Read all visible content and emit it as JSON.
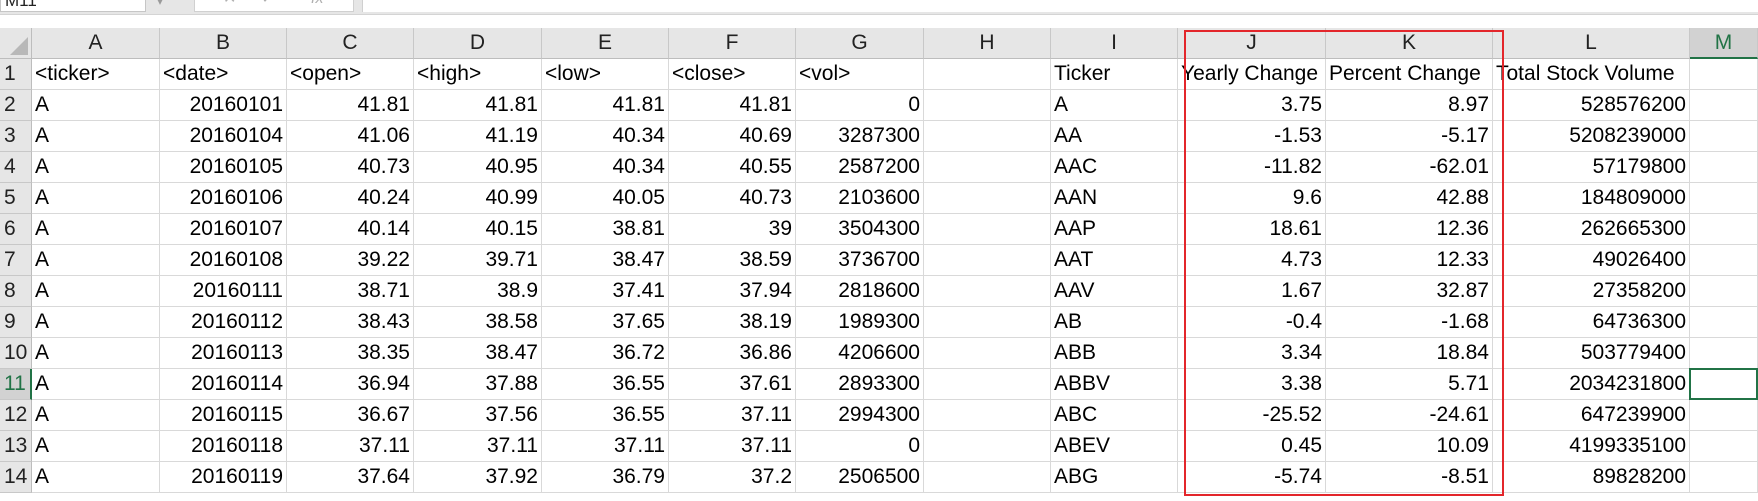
{
  "name_box": "M11",
  "formula_bar": {
    "fx_label": "fx",
    "cancel_symbol": "✕",
    "enter_symbol": "✓",
    "value": ""
  },
  "columns": [
    "",
    "A",
    "B",
    "C",
    "D",
    "E",
    "F",
    "G",
    "H",
    "I",
    "J",
    "K",
    "L",
    "M"
  ],
  "selected_column": "M",
  "selected_row": "11",
  "rows": [
    {
      "n": "1",
      "cells": [
        "<ticker>",
        "<date>",
        "<open>",
        "<high>",
        "<low>",
        "<close>",
        "<vol>",
        "",
        "Ticker",
        "Yearly Change",
        "Percent Change",
        "Total Stock Volume",
        ""
      ]
    },
    {
      "n": "2",
      "cells": [
        "A",
        "20160101",
        "41.81",
        "41.81",
        "41.81",
        "41.81",
        "0",
        "",
        "A",
        "3.75",
        "8.97",
        "528576200",
        ""
      ]
    },
    {
      "n": "3",
      "cells": [
        "A",
        "20160104",
        "41.06",
        "41.19",
        "40.34",
        "40.69",
        "3287300",
        "",
        "AA",
        "-1.53",
        "-5.17",
        "5208239000",
        ""
      ]
    },
    {
      "n": "4",
      "cells": [
        "A",
        "20160105",
        "40.73",
        "40.95",
        "40.34",
        "40.55",
        "2587200",
        "",
        "AAC",
        "-11.82",
        "-62.01",
        "57179800",
        ""
      ]
    },
    {
      "n": "5",
      "cells": [
        "A",
        "20160106",
        "40.24",
        "40.99",
        "40.05",
        "40.73",
        "2103600",
        "",
        "AAN",
        "9.6",
        "42.88",
        "184809000",
        ""
      ]
    },
    {
      "n": "6",
      "cells": [
        "A",
        "20160107",
        "40.14",
        "40.15",
        "38.81",
        "39",
        "3504300",
        "",
        "AAP",
        "18.61",
        "12.36",
        "262665300",
        ""
      ]
    },
    {
      "n": "7",
      "cells": [
        "A",
        "20160108",
        "39.22",
        "39.71",
        "38.47",
        "38.59",
        "3736700",
        "",
        "AAT",
        "4.73",
        "12.33",
        "49026400",
        ""
      ]
    },
    {
      "n": "8",
      "cells": [
        "A",
        "20160111",
        "38.71",
        "38.9",
        "37.41",
        "37.94",
        "2818600",
        "",
        "AAV",
        "1.67",
        "32.87",
        "27358200",
        ""
      ]
    },
    {
      "n": "9",
      "cells": [
        "A",
        "20160112",
        "38.43",
        "38.58",
        "37.65",
        "38.19",
        "1989300",
        "",
        "AB",
        "-0.4",
        "-1.68",
        "64736300",
        ""
      ]
    },
    {
      "n": "10",
      "cells": [
        "A",
        "20160113",
        "38.35",
        "38.47",
        "36.72",
        "36.86",
        "4206600",
        "",
        "ABB",
        "3.34",
        "18.84",
        "503779400",
        ""
      ]
    },
    {
      "n": "11",
      "cells": [
        "A",
        "20160114",
        "36.94",
        "37.88",
        "36.55",
        "37.61",
        "2893300",
        "",
        "ABBV",
        "3.38",
        "5.71",
        "2034231800",
        ""
      ]
    },
    {
      "n": "12",
      "cells": [
        "A",
        "20160115",
        "36.67",
        "37.56",
        "36.55",
        "37.11",
        "2994300",
        "",
        "ABC",
        "-25.52",
        "-24.61",
        "647239900",
        ""
      ]
    },
    {
      "n": "13",
      "cells": [
        "A",
        "20160118",
        "37.11",
        "37.11",
        "37.11",
        "37.11",
        "0",
        "",
        "ABEV",
        "0.45",
        "10.09",
        "4199335100",
        ""
      ]
    },
    {
      "n": "14",
      "cells": [
        "A",
        "20160119",
        "37.64",
        "37.92",
        "36.79",
        "37.2",
        "2506500",
        "",
        "ABG",
        "-5.74",
        "-8.51",
        "89828200",
        ""
      ]
    }
  ],
  "colors": {
    "accent": "#217346",
    "highlight": "#e3262b",
    "header_bg": "#e6e6e6",
    "grid_line": "#d9d9d9"
  }
}
